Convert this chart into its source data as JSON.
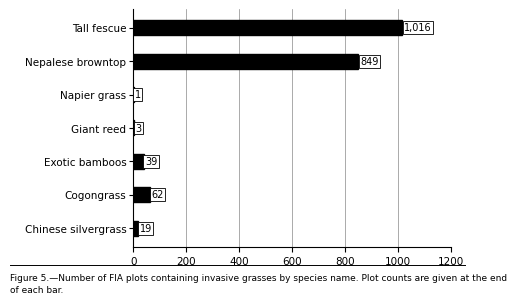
{
  "categories": [
    "Tall fescue",
    "Nepalese browntop",
    "Napier grass",
    "Giant reed",
    "Exotic bamboos",
    "Cogongrass",
    "Chinese silvergrass"
  ],
  "values": [
    1016,
    849,
    1,
    3,
    39,
    62,
    19
  ],
  "labels": [
    "1,016",
    "849",
    "1",
    "3",
    "39",
    "62",
    "19"
  ],
  "bar_color": "#000000",
  "xlim": [
    0,
    1200
  ],
  "xticks": [
    0,
    200,
    400,
    600,
    800,
    1000,
    1200
  ],
  "caption": "Figure 5.—Number of FIA plots containing invasive grasses by species name. Plot counts are given at the end\nof each bar.",
  "caption_fontsize": 6.5,
  "ylabel_fontsize": 7.5,
  "tick_fontsize": 7.5,
  "bar_height": 0.45,
  "font_family": "Courier New",
  "caption_font_family": "DejaVu Sans"
}
